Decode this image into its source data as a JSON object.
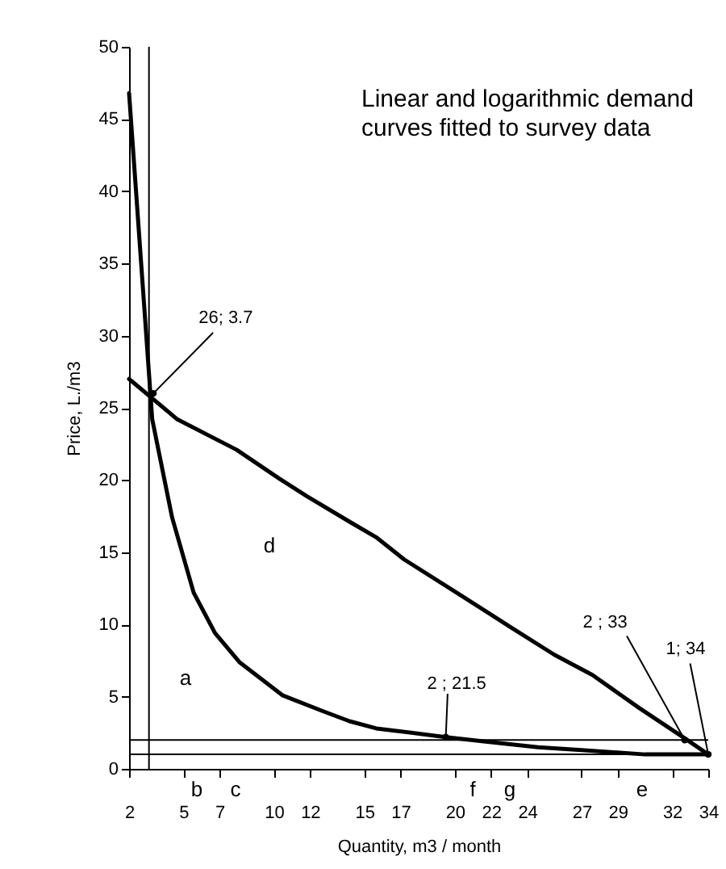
{
  "chart_data": {
    "type": "line",
    "title": "Linear and logarithmic demand curves fitted to survey data",
    "xlabel": "Quantity, m3 / month",
    "ylabel": "Price, L./m3",
    "xlim": [
      2,
      34
    ],
    "ylim": [
      0,
      50
    ],
    "xticks": [
      2,
      5,
      7,
      10,
      12,
      15,
      17,
      20,
      22,
      24,
      27,
      29,
      32,
      34
    ],
    "yticks": [
      0,
      5,
      10,
      15,
      20,
      25,
      30,
      35,
      40,
      45,
      50
    ],
    "grid": false,
    "legend": false,
    "marker": "none",
    "line_style": "solid",
    "series": [
      {
        "color": "#000000",
        "x": [
          2,
          3.28,
          4.38,
          5.57,
          6.75,
          8.09,
          10.47,
          12.7,
          14.18,
          15.66,
          19.5,
          21.6,
          24.6,
          27.0,
          30.5,
          34
        ],
        "values": [
          46.8,
          24.2,
          17.4,
          12.2,
          9.4,
          7.4,
          5.1,
          4.0,
          3.3,
          2.8,
          2.2,
          1.9,
          1.5,
          1.3,
          1.0,
          1.0
        ]
      },
      {
        "color": "#000000",
        "x": [
          2,
          4.67,
          7.94,
          10.3,
          11.8,
          14.2,
          15.7,
          17.2,
          20.1,
          23.1,
          25.5,
          27.6,
          30.2,
          32.6,
          34
        ],
        "values": [
          27.0,
          24.2,
          22.1,
          20.1,
          18.9,
          17.1,
          16.0,
          14.5,
          12.2,
          9.8,
          7.9,
          6.5,
          4.2,
          2.2,
          1.0
        ]
      }
    ],
    "ref_lines": [
      {
        "axis": "x",
        "value": 3.1,
        "color": "#000000"
      },
      {
        "axis": "y",
        "value": 2,
        "color": "#000000"
      },
      {
        "axis": "y",
        "value": 1,
        "color": "#000000"
      }
    ],
    "annotations": [
      {
        "text": "26; 3.7",
        "x": 3.34,
        "y": 26
      },
      {
        "text": "2 ; 21.5",
        "x": 19.5,
        "y": 2.2
      },
      {
        "text": "2 ; 33",
        "x": 32.7,
        "y": 2
      },
      {
        "text": "1; 34",
        "x": 34,
        "y": 1
      },
      "a",
      "b",
      "c",
      "d",
      "e",
      "f",
      "g"
    ]
  }
}
